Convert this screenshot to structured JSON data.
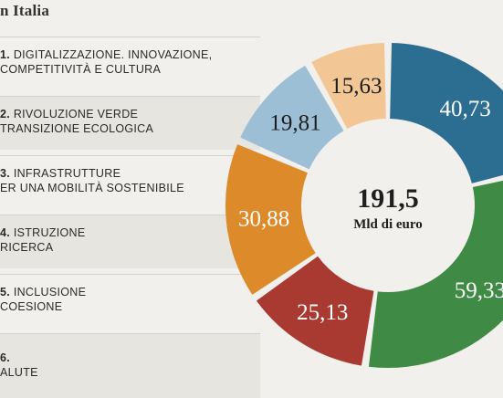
{
  "title": "n Italia",
  "legend": [
    {
      "code": "1.",
      "line1": "DIGITALIZZAZIONE. INNOVAZIONE,",
      "line2": "COMPETITIVITÀ E CULTURA"
    },
    {
      "code": "2.",
      "line1": "RIVOLUZIONE VERDE",
      "line2": "TRANSIZIONE ECOLOGICA"
    },
    {
      "code": "3.",
      "line1": "INFRASTRUTTURE",
      "line2": "ER UNA MOBILITÀ SOSTENIBILE"
    },
    {
      "code": "4.",
      "line1": "ISTRUZIONE",
      "line2": "RICERCA"
    },
    {
      "code": "5.",
      "line1": "INCLUSIONE",
      "line2": "COESIONE"
    },
    {
      "code": "6.",
      "line1": "",
      "line2": "ALUTE"
    }
  ],
  "center": {
    "value": "191,5",
    "unit": "Mld di euro"
  },
  "chart_data": {
    "type": "pie",
    "total": 191.5,
    "unit": "Mld di euro",
    "slices": [
      {
        "label": "40,73",
        "value": 40.73,
        "color": "#2c6e92"
      },
      {
        "label": "59,33",
        "value": 59.33,
        "color": "#3f8a45"
      },
      {
        "label": "25,13",
        "value": 25.13,
        "color": "#a83a32"
      },
      {
        "label": "30,88",
        "value": 30.88,
        "color": "#dc8a2a"
      },
      {
        "label": "19,81",
        "value": 19.81,
        "color": "#9dbfd6"
      },
      {
        "label": "15,63",
        "value": 15.63,
        "color": "#f2c795"
      }
    ]
  }
}
